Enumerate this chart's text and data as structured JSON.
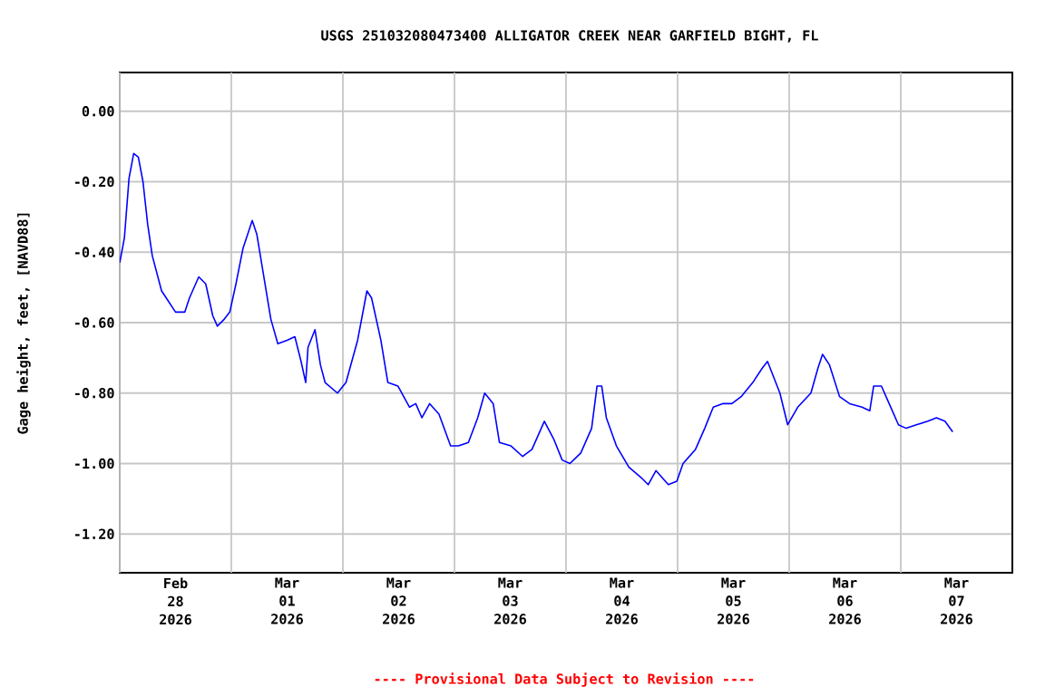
{
  "chart_data": {
    "type": "line",
    "title": "USGS 251032080473400 ALLIGATOR CREEK NEAR GARFIELD BIGHT, FL",
    "ylabel": "Gage height, feet, [NAVD88]",
    "annotations": [
      "---- Provisional Data Subject to Revision ----"
    ],
    "x": [
      "2026-02-28T00:00",
      "2026-02-28T01:00",
      "2026-02-28T02:00",
      "2026-02-28T03:00",
      "2026-02-28T04:00",
      "2026-02-28T05:00",
      "2026-02-28T06:00",
      "2026-02-28T07:00",
      "2026-02-28T09:00",
      "2026-02-28T10:00",
      "2026-02-28T12:00",
      "2026-02-28T14:00",
      "2026-02-28T15:00",
      "2026-02-28T17:00",
      "2026-02-28T18:30",
      "2026-02-28T20:00",
      "2026-02-28T21:00",
      "2026-02-28T22:30",
      "2026-02-28T23:40",
      "2026-03-01T01:00",
      "2026-03-01T02:30",
      "2026-03-01T04:30",
      "2026-03-01T05:30",
      "2026-03-01T07:00",
      "2026-03-01T08:30",
      "2026-03-01T10:00",
      "2026-03-01T12:00",
      "2026-03-01T13:40",
      "2026-03-01T15:00",
      "2026-03-01T16:00",
      "2026-03-01T16:30",
      "2026-03-01T18:00",
      "2026-03-01T19:10",
      "2026-03-01T20:10",
      "2026-03-01T22:50",
      "2026-03-02T00:40",
      "2026-03-02T03:10",
      "2026-03-02T05:10",
      "2026-03-02T06:10",
      "2026-03-02T08:10",
      "2026-03-02T09:40",
      "2026-03-02T11:50",
      "2026-03-02T14:20",
      "2026-03-02T15:40",
      "2026-03-02T17:00",
      "2026-03-02T18:40",
      "2026-03-02T20:40",
      "2026-03-02T23:10",
      "2026-03-03T00:50",
      "2026-03-03T03:00",
      "2026-03-03T05:00",
      "2026-03-03T06:30",
      "2026-03-03T08:20",
      "2026-03-03T09:40",
      "2026-03-03T12:10",
      "2026-03-03T14:40",
      "2026-03-03T16:40",
      "2026-03-03T19:20",
      "2026-03-03T21:20",
      "2026-03-03T23:10",
      "2026-03-04T00:50",
      "2026-03-04T03:10",
      "2026-03-04T05:30",
      "2026-03-04T06:40",
      "2026-03-04T07:40",
      "2026-03-04T08:40",
      "2026-03-04T10:50",
      "2026-03-04T13:30",
      "2026-03-04T16:10",
      "2026-03-04T17:40",
      "2026-03-04T19:20",
      "2026-03-04T22:00",
      "2026-03-04T23:50",
      "2026-03-05T01:10",
      "2026-03-05T03:50",
      "2026-03-05T05:50",
      "2026-03-05T07:40",
      "2026-03-05T09:40",
      "2026-03-05T11:40",
      "2026-03-05T13:40",
      "2026-03-05T16:10",
      "2026-03-05T18:10",
      "2026-03-05T19:20",
      "2026-03-05T22:00",
      "2026-03-05T23:40",
      "2026-03-06T01:50",
      "2026-03-06T04:40",
      "2026-03-06T06:10",
      "2026-03-06T07:10",
      "2026-03-06T08:40",
      "2026-03-06T10:50",
      "2026-03-06T13:00",
      "2026-03-06T15:40",
      "2026-03-06T17:20",
      "2026-03-06T18:10",
      "2026-03-06T19:50",
      "2026-03-06T21:30",
      "2026-03-06T23:30",
      "2026-03-07T01:10",
      "2026-03-07T03:20",
      "2026-03-07T05:50",
      "2026-03-07T07:40",
      "2026-03-07T09:30",
      "2026-03-07T11:10"
    ],
    "series": [
      {
        "color": "#0000ff",
        "values": [
          -0.43,
          -0.36,
          -0.19,
          -0.12,
          -0.13,
          -0.2,
          -0.32,
          -0.41,
          -0.51,
          -0.53,
          -0.57,
          -0.57,
          -0.53,
          -0.47,
          -0.49,
          -0.58,
          -0.61,
          -0.59,
          -0.57,
          -0.49,
          -0.39,
          -0.31,
          -0.35,
          -0.47,
          -0.59,
          -0.66,
          -0.65,
          -0.64,
          -0.71,
          -0.77,
          -0.67,
          -0.62,
          -0.72,
          -0.77,
          -0.8,
          -0.77,
          -0.65,
          -0.51,
          -0.53,
          -0.65,
          -0.77,
          -0.78,
          -0.84,
          -0.83,
          -0.87,
          -0.83,
          -0.86,
          -0.95,
          -0.95,
          -0.94,
          -0.87,
          -0.8,
          -0.83,
          -0.94,
          -0.95,
          -0.98,
          -0.96,
          -0.88,
          -0.93,
          -0.99,
          -1.0,
          -0.97,
          -0.9,
          -0.78,
          -0.78,
          -0.87,
          -0.95,
          -1.01,
          -1.04,
          -1.06,
          -1.02,
          -1.06,
          -1.05,
          -1.0,
          -0.96,
          -0.9,
          -0.84,
          -0.83,
          -0.83,
          -0.81,
          -0.77,
          -0.73,
          -0.71,
          -0.8,
          -0.89,
          -0.84,
          -0.8,
          -0.73,
          -0.69,
          -0.72,
          -0.81,
          -0.83,
          -0.84,
          -0.85,
          -0.78,
          -0.78,
          -0.83,
          -0.89,
          -0.9,
          -0.89,
          -0.88,
          -0.87,
          -0.88,
          -0.91
        ]
      }
    ],
    "xlim": [
      "2026-02-28T00:00",
      "2026-03-08T00:00"
    ],
    "xticks": [
      {
        "value": "2026-02-28T00:00",
        "label": null
      },
      {
        "value": "2026-03-01T00:00",
        "label": null
      },
      {
        "value": "2026-03-02T00:00",
        "label": null
      },
      {
        "value": "2026-03-03T00:00",
        "label": null
      },
      {
        "value": "2026-03-04T00:00",
        "label": null
      },
      {
        "value": "2026-03-05T00:00",
        "label": null
      },
      {
        "value": "2026-03-06T00:00",
        "label": null
      },
      {
        "value": "2026-03-07T00:00",
        "label": null
      },
      {
        "value": "2026-02-28T12:00",
        "label": "Feb 28 2026"
      },
      {
        "value": "2026-03-01T12:00",
        "label": "Mar 01 2026"
      },
      {
        "value": "2026-03-02T12:00",
        "label": "Mar 02 2026"
      },
      {
        "value": "2026-03-03T12:00",
        "label": "Mar 03 2026"
      },
      {
        "value": "2026-03-04T12:00",
        "label": "Mar 04 2026"
      },
      {
        "value": "2026-03-05T12:00",
        "label": "Mar 05 2026"
      },
      {
        "value": "2026-03-06T12:00",
        "label": "Mar 06 2026"
      },
      {
        "value": "2026-03-07T12:00",
        "label": "Mar 07 2026"
      }
    ],
    "ylim": [
      -1.31,
      0.11
    ],
    "yticks": [
      {
        "value": 0,
        "label": "0.00"
      },
      {
        "value": -0.2,
        "label": "-0.20"
      },
      {
        "value": -0.4,
        "label": "-0.40"
      },
      {
        "value": -0.6,
        "label": "-0.60"
      },
      {
        "value": -0.8,
        "label": "-0.80"
      },
      {
        "value": -1.0,
        "label": "-1.00"
      },
      {
        "value": -1.2,
        "label": "-1.20"
      }
    ],
    "grid": true,
    "line_style": "solid",
    "marker": "none"
  }
}
